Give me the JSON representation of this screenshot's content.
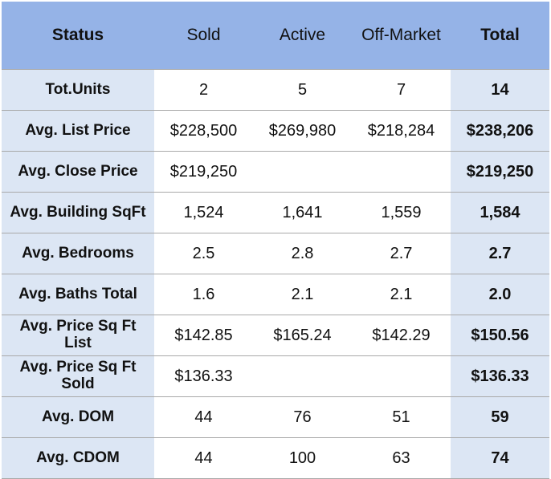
{
  "table": {
    "header": [
      "Status",
      "Sold",
      "Active",
      "Off-Market",
      "Total"
    ],
    "rows": [
      [
        "Tot.Units",
        "2",
        "5",
        "7",
        "14"
      ],
      [
        "Avg. List Price",
        "$228,500",
        "$269,980",
        "$218,284",
        "$238,206"
      ],
      [
        "Avg. Close Price",
        "$219,250",
        null,
        null,
        "$219,250"
      ],
      [
        "Avg. Building SqFt",
        "1,524",
        "1,641",
        "1,559",
        "1,584"
      ],
      [
        "Avg. Bedrooms",
        "2.5",
        "2.8",
        "2.7",
        "2.7"
      ],
      [
        "Avg. Baths Total",
        "1.6",
        "2.1",
        "2.1",
        "2.0"
      ],
      [
        "Avg. Price Sq Ft List",
        "$142.85",
        "$165.24",
        "$142.29",
        "$150.56"
      ],
      [
        "Avg. Price Sq Ft Sold",
        "$136.33",
        null,
        null,
        "$136.33"
      ],
      [
        "Avg. DOM",
        "44",
        "76",
        "51",
        "59"
      ],
      [
        "Avg. CDOM",
        "44",
        "100",
        "63",
        "74"
      ]
    ]
  }
}
